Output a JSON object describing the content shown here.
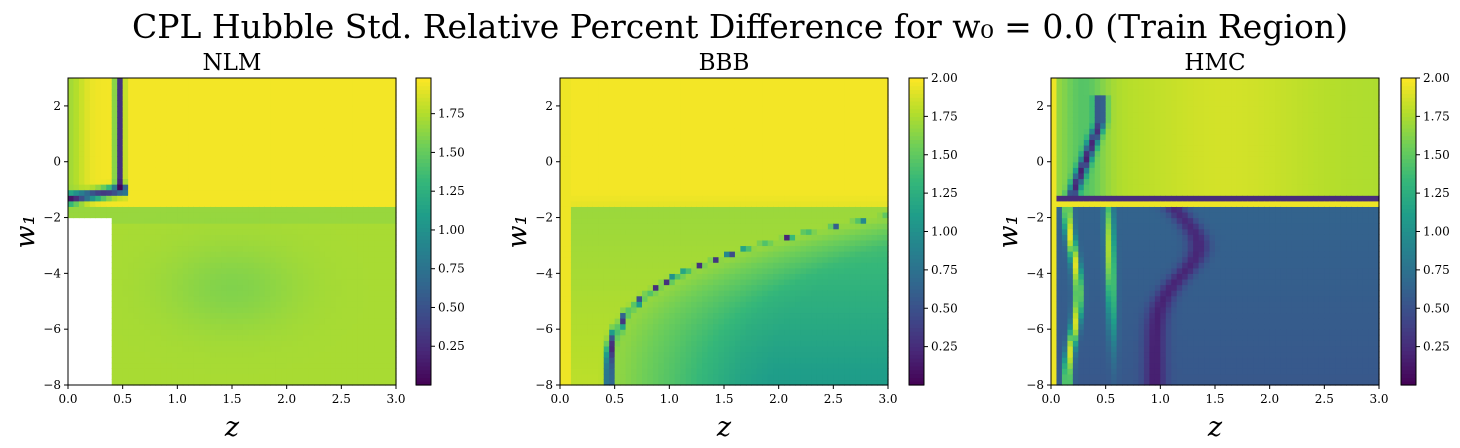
{
  "figure": {
    "title": "CPL Hubble Std. Relative Percent Difference for w₀ = 0.0 (Train Region)"
  },
  "chart_data": [
    {
      "type": "heatmap",
      "title": "NLM",
      "xlabel": "z",
      "ylabel": "w₁",
      "xlim": [
        0.0,
        3.0
      ],
      "ylim": [
        -8,
        3
      ],
      "xticks": [
        "0.0",
        "0.5",
        "1.0",
        "1.5",
        "2.0",
        "2.5",
        "3.0"
      ],
      "yticks": [
        "−8",
        "−6",
        "−4",
        "−2",
        "0",
        "2"
      ],
      "colorbar": {
        "min": 0.0,
        "max": 1.98,
        "ticks": [
          "0.25",
          "0.50",
          "0.75",
          "1.00",
          "1.25",
          "1.50",
          "1.75"
        ]
      },
      "colormap": "viridis",
      "features": [
        "mostly yellow (~1.7-1.98) above w1 = -1.6",
        "low-valued (dark) vertical band near z = 0.47 for w1 > -1",
        "dark curved band near w1 = -1 for z < 0.5",
        "missing (white) region at z < 0.4, w1 < -2",
        "yellow-green (~1.6-1.75) below w1 = -1.6"
      ]
    },
    {
      "type": "heatmap",
      "title": "BBB",
      "xlabel": "z",
      "ylabel": "w₁",
      "xlim": [
        0.0,
        3.0
      ],
      "ylim": [
        -8,
        3
      ],
      "xticks": [
        "0.0",
        "0.5",
        "1.0",
        "1.5",
        "2.0",
        "2.5",
        "3.0"
      ],
      "yticks": [
        "−8",
        "−6",
        "−4",
        "−2",
        "0",
        "2"
      ],
      "colorbar": {
        "min": 0.0,
        "max": 2.0,
        "ticks": [
          "0.25",
          "0.50",
          "0.75",
          "1.00",
          "1.25",
          "1.50",
          "1.75",
          "2.00"
        ]
      },
      "colormap": "viridis",
      "features": [
        "yellow (~1.9-2.0) above w1 = -1.6",
        "dark/bright alternating curved band from (0.45, -8) to (3.0, -1.9)",
        "green-teal (~1.1-1.6) below the curve at large z",
        "bright yellow strip at z < 0.1"
      ]
    },
    {
      "type": "heatmap",
      "title": "HMC",
      "xlabel": "z",
      "ylabel": "w₁",
      "xlim": [
        0.0,
        3.0
      ],
      "ylim": [
        -8,
        3
      ],
      "xticks": [
        "0.0",
        "0.5",
        "1.0",
        "1.5",
        "2.0",
        "2.5",
        "3.0"
      ],
      "yticks": [
        "−8",
        "−6",
        "−4",
        "−2",
        "0",
        "2"
      ],
      "colorbar": {
        "min": 0.0,
        "max": 2.0,
        "ticks": [
          "0.25",
          "0.50",
          "0.75",
          "1.00",
          "1.25",
          "1.50",
          "1.75",
          "2.00"
        ]
      },
      "colormap": "viridis",
      "features": [
        "yellow-green (~1.5-1.9) above w1 = -1.2",
        "dark horizontal band near w1 = -1.2 with bright yellow line near w1 = -1.5",
        "blue/dark (~0.4-0.7) below w1 = -1.6",
        "bright curved bands near z = 0.2-0.6 for w1 < -2",
        "bright yellow strip at z < 0.05"
      ]
    }
  ]
}
